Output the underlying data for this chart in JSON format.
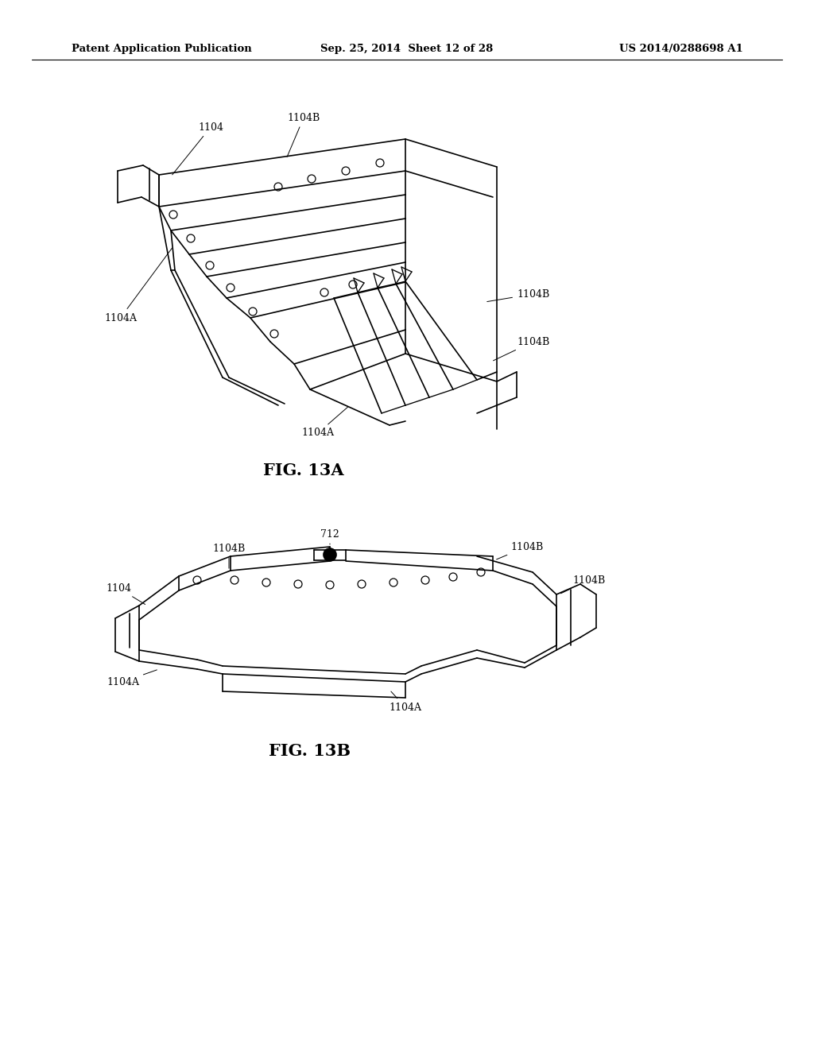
{
  "background_color": "#ffffff",
  "header_left": "Patent Application Publication",
  "header_center": "Sep. 25, 2014  Sheet 12 of 28",
  "header_right": "US 2014/0288698 A1",
  "fig13a_label": "FIG. 13A",
  "fig13b_label": "FIG. 13B",
  "header_font_size": 9.5,
  "fig_label_font_size": 15,
  "annotation_font_size": 9,
  "line_color": "#000000",
  "line_width": 1.2
}
